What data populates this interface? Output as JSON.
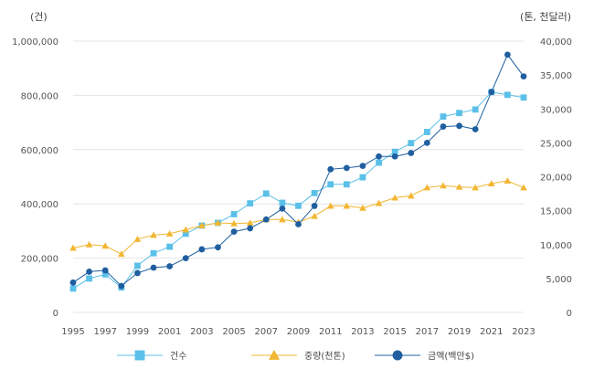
{
  "chart_data": {
    "type": "line",
    "left_unit": "(건)",
    "right_unit": "(톤, 천달러)",
    "x": [
      1995,
      1996,
      1997,
      1998,
      1999,
      2000,
      2001,
      2002,
      2003,
      2004,
      2005,
      2006,
      2007,
      2008,
      2009,
      2010,
      2011,
      2012,
      2013,
      2014,
      2015,
      2016,
      2017,
      2018,
      2019,
      2020,
      2021,
      2022,
      2023
    ],
    "x_tick_labels": [
      "1995",
      "1997",
      "1999",
      "2001",
      "2003",
      "2005",
      "2007",
      "2009",
      "2011",
      "2013",
      "2015",
      "2017",
      "2019",
      "2021",
      "2023"
    ],
    "left_axis": {
      "min": 0,
      "max": 1000000,
      "ticks": [
        0,
        200000,
        400000,
        600000,
        800000,
        1000000
      ],
      "tick_labels": [
        "0",
        "200,000",
        "400,000",
        "600,000",
        "800,000",
        "1,000,000"
      ]
    },
    "right_axis": {
      "min": 0,
      "max": 40000,
      "ticks": [
        0,
        5000,
        10000,
        15000,
        20000,
        25000,
        30000,
        35000,
        40000
      ],
      "tick_labels": [
        "0",
        "5,000",
        "10,000",
        "15,000",
        "20,000",
        "25,000",
        "30,000",
        "35,000",
        "40,000"
      ]
    },
    "grid": true,
    "legend_position": "bottom",
    "series": [
      {
        "name": "건수",
        "axis": "left",
        "marker": "square",
        "color": "#5bc0e8",
        "values": [
          88000,
          125000,
          140000,
          92000,
          172000,
          218000,
          242000,
          290000,
          320000,
          330000,
          362000,
          402000,
          438000,
          404000,
          393000,
          440000,
          472000,
          472000,
          498000,
          552000,
          592000,
          624000,
          665000,
          722000,
          735000,
          748000,
          812000,
          802000,
          792000
        ]
      },
      {
        "name": "중량(천톤)",
        "axis": "right",
        "marker": "triangle",
        "color": "#f2b632",
        "values": [
          9500,
          10000,
          9800,
          8600,
          10800,
          11400,
          11600,
          12200,
          12800,
          13200,
          13100,
          13200,
          13700,
          13700,
          13300,
          14200,
          15700,
          15700,
          15400,
          16100,
          16900,
          17200,
          18400,
          18700,
          18500,
          18400,
          19000,
          19400,
          18400
        ]
      },
      {
        "name": "금액(백만$)",
        "axis": "right",
        "marker": "circle",
        "color": "#1f5fa0",
        "values": [
          4400,
          6000,
          6200,
          3900,
          5800,
          6600,
          6800,
          8000,
          9300,
          9600,
          11900,
          12400,
          13700,
          15300,
          13000,
          15700,
          21100,
          21300,
          21600,
          23000,
          23000,
          23500,
          25000,
          27400,
          27500,
          27000,
          32500,
          38000,
          34800
        ]
      }
    ]
  }
}
